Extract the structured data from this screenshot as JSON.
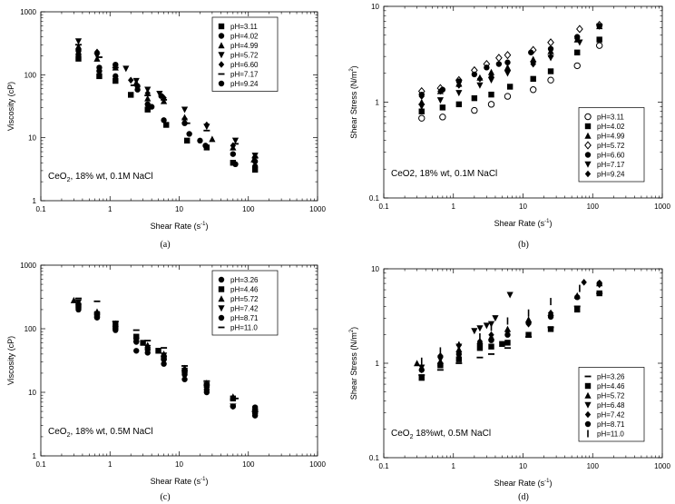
{
  "chart_data": [
    {
      "type": "scatter",
      "panel_label": "(a)",
      "xlabel": "Shear Rate (s",
      "xlabel_sup": "-1",
      "xlabel_end": ")",
      "ylabel": "Viscosity (cP)",
      "xscale": "log",
      "yscale": "log",
      "xlim": [
        0.1,
        1000
      ],
      "ylim": [
        1,
        1000
      ],
      "x_ticks": [
        "0.1",
        "1",
        "10",
        "100",
        "1000"
      ],
      "y_ticks": [
        "1",
        "10",
        "100",
        "1000"
      ],
      "annotation": {
        "pre": "CeO",
        "sub": "2",
        "post": ", 18% wt, 0.1M NaCl"
      },
      "legend_position": "top-right",
      "series": [
        {
          "name": "pH=3.11",
          "marker": "square",
          "x": [
            0.35,
            0.7,
            1.2,
            2.0,
            3.5,
            6.5,
            13,
            25,
            60,
            125
          ],
          "y": [
            180,
            95,
            80,
            48,
            28,
            16,
            9,
            7,
            4,
            3.1
          ]
        },
        {
          "name": "pH=4.02",
          "marker": "circle",
          "x": [
            0.35,
            0.7,
            1.2,
            2.5,
            4.0,
            6.0,
            14,
            24,
            65,
            125
          ],
          "y": [
            210,
            115,
            95,
            58,
            31,
            19,
            11.5,
            7.5,
            3.8,
            3.5
          ]
        },
        {
          "name": "pH=4.99",
          "marker": "triangle-up",
          "x": [
            0.35,
            0.65,
            1.2,
            2.4,
            3.5,
            6.0,
            12,
            30,
            60,
            120
          ],
          "y": [
            280,
            180,
            130,
            75,
            42,
            38,
            21,
            9.5,
            7,
            4.5
          ]
        },
        {
          "name": "pH=5.72",
          "marker": "triangle-down",
          "x": [
            0.35,
            0.65,
            1.7,
            2.4,
            3.5,
            5.2,
            12,
            25,
            65,
            125
          ],
          "y": [
            340,
            200,
            125,
            80,
            58,
            50,
            28,
            15,
            9,
            5.2
          ]
        },
        {
          "name": "pH=6.60",
          "marker": "diamond",
          "x": [
            0.35,
            0.65,
            1.2,
            2.0,
            3.5,
            6.0,
            12,
            25,
            60,
            125
          ],
          "y": [
            260,
            230,
            140,
            82,
            51,
            43,
            20,
            16,
            7.5,
            5
          ]
        },
        {
          "name": "pH=7.17",
          "marker": "dash",
          "x": [
            0.35,
            0.7,
            1.2,
            2.2,
            3.5,
            6.0,
            13,
            25,
            65,
            125
          ],
          "y": [
            300,
            190,
            130,
            68,
            47,
            40,
            17,
            13,
            8,
            4.8
          ]
        },
        {
          "name": "pH=9.24",
          "marker": "circle",
          "x": [
            0.35,
            0.7,
            1.2,
            2.5,
            3.5,
            5.5,
            12,
            20,
            60,
            125
          ],
          "y": [
            240,
            130,
            145,
            66,
            34,
            46,
            17,
            9,
            5.5,
            4.2
          ]
        }
      ]
    },
    {
      "type": "scatter",
      "panel_label": "(b)",
      "xlabel": "Shear Rate (s",
      "xlabel_sup": "-1",
      "xlabel_end": ")",
      "ylabel": "Shear Stress (N/m",
      "ylabel_sup": "2",
      "ylabel_end": ")",
      "xscale": "log",
      "yscale": "log",
      "xlim": [
        0.1,
        1000
      ],
      "ylim": [
        0.1,
        10
      ],
      "x_ticks": [
        "0.1",
        "1",
        "10",
        "100",
        "1000"
      ],
      "y_ticks": [
        "0.1",
        "1",
        "10"
      ],
      "annotation": {
        "pre": "CeO2, 18% wt, 0.1M NaCl",
        "sub": "",
        "post": ""
      },
      "legend_position": "bottom-right",
      "series": [
        {
          "name": "pH=3.11",
          "marker": "circle-open",
          "x": [
            0.35,
            0.7,
            2.0,
            3.5,
            6.0,
            14,
            25,
            60,
            125
          ],
          "y": [
            0.68,
            0.7,
            0.82,
            0.95,
            1.15,
            1.35,
            1.7,
            2.4,
            3.9
          ]
        },
        {
          "name": "pH=4.02",
          "marker": "square",
          "x": [
            0.35,
            0.7,
            1.2,
            2.0,
            3.5,
            6.5,
            14,
            25,
            60,
            125
          ],
          "y": [
            0.8,
            0.88,
            0.95,
            1.1,
            1.2,
            1.45,
            1.75,
            2.1,
            3.3,
            4.5
          ]
        },
        {
          "name": "pH=4.99",
          "marker": "triangle-up",
          "x": [
            0.35,
            0.65,
            1.2,
            2.4,
            3.5,
            6.0,
            14,
            25,
            60,
            125
          ],
          "y": [
            1.0,
            1.3,
            1.55,
            1.8,
            2.05,
            2.3,
            2.8,
            3.4,
            4.5,
            6.2
          ]
        },
        {
          "name": "pH=5.72",
          "marker": "diamond-open",
          "x": [
            0.35,
            0.65,
            1.2,
            2.0,
            3.0,
            4.5,
            6.0,
            14,
            25,
            65,
            125
          ],
          "y": [
            1.3,
            1.4,
            1.7,
            2.15,
            2.5,
            2.9,
            3.1,
            3.5,
            4.2,
            5.8,
            6.4
          ]
        },
        {
          "name": "pH=6.60",
          "marker": "circle",
          "x": [
            0.35,
            0.7,
            1.2,
            2.0,
            3.0,
            4.5,
            6.0,
            13,
            25,
            60,
            125
          ],
          "y": [
            1.2,
            1.35,
            1.65,
            1.95,
            2.3,
            2.5,
            2.6,
            3.3,
            3.6,
            4.8,
            6.2
          ]
        },
        {
          "name": "pH=7.17",
          "marker": "triangle-down",
          "x": [
            0.35,
            0.65,
            1.2,
            2.4,
            3.5,
            6.0,
            14,
            25,
            65,
            125
          ],
          "y": [
            0.9,
            1.05,
            1.25,
            1.5,
            1.7,
            2.0,
            2.5,
            2.9,
            4.2,
            6.2
          ]
        },
        {
          "name": "pH=9.24",
          "marker": "diamond",
          "x": [
            0.35,
            0.65,
            1.2,
            2.4,
            3.5,
            6.0,
            14,
            25,
            60,
            125
          ],
          "y": [
            1.15,
            1.3,
            1.5,
            1.75,
            1.85,
            2.1,
            2.5,
            3.0,
            4.6,
            6.2
          ]
        }
      ]
    },
    {
      "type": "scatter",
      "panel_label": "(c)",
      "xlabel": "Shear Rate (s",
      "xlabel_sup": "-1",
      "xlabel_end": ")",
      "ylabel": "Viscosity (cP)",
      "xscale": "log",
      "yscale": "log",
      "xlim": [
        0.1,
        1000
      ],
      "ylim": [
        1,
        1000
      ],
      "x_ticks": [
        "0.1",
        "1",
        "10",
        "100",
        "1000"
      ],
      "y_ticks": [
        "1",
        "10",
        "100",
        "1000"
      ],
      "annotation": {
        "pre": "CeO",
        "sub": "2",
        "post": ", 18% wt, 0.5M NaCl"
      },
      "legend_position": "top-right",
      "series": [
        {
          "name": "pH=3.26",
          "marker": "circle",
          "x": [
            0.35,
            0.65,
            1.2,
            2.4,
            3.5,
            6.0,
            12,
            25,
            60,
            125
          ],
          "y": [
            200,
            150,
            95,
            62,
            47,
            28,
            16,
            10,
            6,
            4.3
          ]
        },
        {
          "name": "pH=4.46",
          "marker": "square",
          "x": [
            0.35,
            0.65,
            1.2,
            2.4,
            3.0,
            5.0,
            6.0,
            12,
            25,
            60,
            125
          ],
          "y": [
            230,
            170,
            110,
            75,
            60,
            45,
            35,
            22,
            13,
            8,
            5
          ]
        },
        {
          "name": "pH=5.72",
          "marker": "triangle-up",
          "x": [
            0.3,
            0.65,
            1.2,
            2.4,
            3.5,
            6.0,
            12,
            25,
            60,
            125
          ],
          "y": [
            280,
            185,
            120,
            70,
            55,
            40,
            24,
            14,
            8.5,
            5.5
          ]
        },
        {
          "name": "pH=7.42",
          "marker": "triangle-down",
          "x": [
            0.35,
            0.65,
            1.2,
            2.4,
            3.5,
            6.0,
            12,
            25,
            60,
            125
          ],
          "y": [
            260,
            160,
            115,
            65,
            50,
            38,
            20,
            12,
            6,
            5
          ]
        },
        {
          "name": "pH=8.71",
          "marker": "circle",
          "x": [
            0.35,
            0.65,
            1.2,
            2.4,
            3.5,
            6.0,
            12,
            25,
            60,
            125
          ],
          "y": [
            240,
            150,
            100,
            45,
            42,
            33,
            19,
            11,
            6,
            5.8
          ]
        },
        {
          "name": "pH=11.0",
          "marker": "dash",
          "x": [
            0.35,
            0.65,
            1.2,
            2.4,
            3.5,
            6.0,
            12,
            25,
            65,
            125
          ],
          "y": [
            300,
            270,
            130,
            95,
            65,
            50,
            26,
            15,
            8,
            5
          ]
        }
      ]
    },
    {
      "type": "scatter",
      "panel_label": "(d)",
      "xlabel": "Shear Rate (s",
      "xlabel_sup": "-1",
      "xlabel_end": ")",
      "ylabel": "Shear Stress (N/m",
      "ylabel_sup": "2",
      "ylabel_end": ")",
      "xscale": "log",
      "yscale": "log",
      "xlim": [
        0.1,
        1000
      ],
      "ylim": [
        0.1,
        10
      ],
      "x_ticks": [
        "0.1",
        "1",
        "10",
        "100",
        "1000"
      ],
      "y_ticks": [
        "0.1",
        "1",
        "10"
      ],
      "annotation": {
        "pre": "CeO",
        "sub": "2",
        "post": " 18%wt, 0.5M NaCl"
      },
      "legend_position": "bottom-right",
      "series": [
        {
          "name": "pH=3.26",
          "marker": "dash",
          "x": [
            0.35,
            0.65,
            1.2,
            2.4,
            3.5,
            6.0,
            12,
            25,
            60,
            125
          ],
          "y": [
            0.75,
            0.85,
            1.0,
            1.15,
            1.25,
            1.45,
            1.9,
            2.4,
            4.0,
            5.5
          ]
        },
        {
          "name": "pH=4.46",
          "marker": "square",
          "x": [
            0.35,
            0.65,
            1.2,
            2.4,
            3.5,
            5.0,
            6.0,
            12,
            25,
            60,
            125
          ],
          "y": [
            0.7,
            0.95,
            1.1,
            1.45,
            1.5,
            1.6,
            1.65,
            2.0,
            2.3,
            3.7,
            5.5
          ]
        },
        {
          "name": "pH=5.72",
          "marker": "triangle-up",
          "x": [
            0.3,
            0.65,
            1.2,
            2.4,
            3.5,
            6.0,
            12,
            25,
            60,
            125
          ],
          "y": [
            1.0,
            1.05,
            1.4,
            1.7,
            1.9,
            2.3,
            2.9,
            3.4,
            5.2,
            7.0
          ]
        },
        {
          "name": "pH=6.48",
          "marker": "triangle-down",
          "x": [
            0.35,
            0.65,
            1.2,
            2.0,
            2.4,
            3.0,
            3.5,
            4.0,
            6.5
          ],
          "y": [
            0.9,
            1.1,
            1.5,
            2.2,
            2.35,
            2.5,
            2.6,
            3.0,
            5.3
          ]
        },
        {
          "name": "pH=7.42",
          "marker": "diamond",
          "x": [
            0.35,
            0.65,
            1.2,
            2.4,
            3.5,
            6.0,
            12,
            25,
            75,
            125
          ],
          "y": [
            0.85,
            1.2,
            1.55,
            1.7,
            2.0,
            2.2,
            2.6,
            3.4,
            7.2,
            6.8
          ]
        },
        {
          "name": "pH=8.71",
          "marker": "circle",
          "x": [
            0.35,
            0.65,
            1.2,
            2.4,
            3.5,
            6.0,
            12,
            25,
            60,
            125
          ],
          "y": [
            0.85,
            0.95,
            1.25,
            1.6,
            1.75,
            2.0,
            2.7,
            3.1,
            5.0,
            7.0
          ]
        },
        {
          "name": "pH=11.0",
          "marker": "tick",
          "x": [
            0.35,
            0.65,
            1.2,
            2.4,
            3.5,
            6.0,
            12,
            25,
            65,
            125
          ],
          "y": [
            1.05,
            1.35,
            1.55,
            1.9,
            2.4,
            2.8,
            3.4,
            4.5,
            6.2,
            7.0
          ]
        }
      ]
    }
  ]
}
